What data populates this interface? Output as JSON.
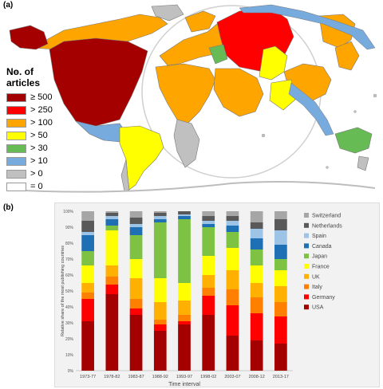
{
  "panel_a_label": "(a)",
  "panel_b_label": "(b)",
  "map": {
    "legend_title": "No. of articles",
    "legend": [
      {
        "label": "≥ 500",
        "color": "#a50000"
      },
      {
        "label": "> 250",
        "color": "#ff0000"
      },
      {
        "label": "> 100",
        "color": "#ffa500"
      },
      {
        "label": "> 50",
        "color": "#ffff00"
      },
      {
        "label": "> 30",
        "color": "#66bb55"
      },
      {
        "label": "> 10",
        "color": "#77aadd"
      },
      {
        "label": "> 0",
        "color": "#c0c0c0"
      },
      {
        "label": "= 0",
        "color": "#ffffff"
      }
    ]
  },
  "chart_data": {
    "type": "bar",
    "stacked": true,
    "categories": [
      "1973-77",
      "1978-82",
      "1983-87",
      "1988-92",
      "1993-97",
      "1998-02",
      "2003-07",
      "2008-12",
      "2013-17"
    ],
    "xlabel": "Time interval",
    "ylabel": "Relative share of the most publishing countries",
    "ylim": [
      0,
      100
    ],
    "yticks": [
      "0%",
      "10%",
      "20%",
      "30%",
      "40%",
      "50%",
      "60%",
      "70%",
      "80%",
      "90%",
      "100%"
    ],
    "grid": false,
    "legend_position": "right",
    "series": [
      {
        "name": "USA",
        "color": "#a50000",
        "values": [
          31,
          48,
          35,
          25,
          29,
          35,
          22,
          19,
          17
        ]
      },
      {
        "name": "Germany",
        "color": "#ff0000",
        "values": [
          14,
          6,
          4,
          4,
          2,
          12,
          19,
          17,
          17
        ]
      },
      {
        "name": "Italy",
        "color": "#ff7f00",
        "values": [
          4,
          5,
          6,
          3,
          4,
          5,
          10,
          10,
          9
        ]
      },
      {
        "name": "UK",
        "color": "#ffb000",
        "values": [
          6,
          7,
          13,
          11,
          9,
          8,
          12,
          9,
          10
        ]
      },
      {
        "name": "France",
        "color": "#ffff00",
        "values": [
          11,
          22,
          12,
          15,
          11,
          12,
          14,
          11,
          10
        ]
      },
      {
        "name": "Japan",
        "color": "#7dc242",
        "values": [
          9,
          3,
          15,
          35,
          40,
          18,
          10,
          10,
          7
        ]
      },
      {
        "name": "Canada",
        "color": "#1f6fb5",
        "values": [
          10,
          4,
          5,
          2,
          2,
          2,
          4,
          7,
          9
        ]
      },
      {
        "name": "Spain",
        "color": "#9dc3e6",
        "values": [
          2,
          2,
          2,
          2,
          1,
          2,
          3,
          6,
          9
        ]
      },
      {
        "name": "Netherlands",
        "color": "#595959",
        "values": [
          7,
          2,
          4,
          2,
          2,
          3,
          3,
          4,
          7
        ]
      },
      {
        "name": "Switzerland",
        "color": "#a6a6a6",
        "values": [
          6,
          1,
          4,
          1,
          0,
          3,
          3,
          7,
          5
        ]
      }
    ]
  }
}
